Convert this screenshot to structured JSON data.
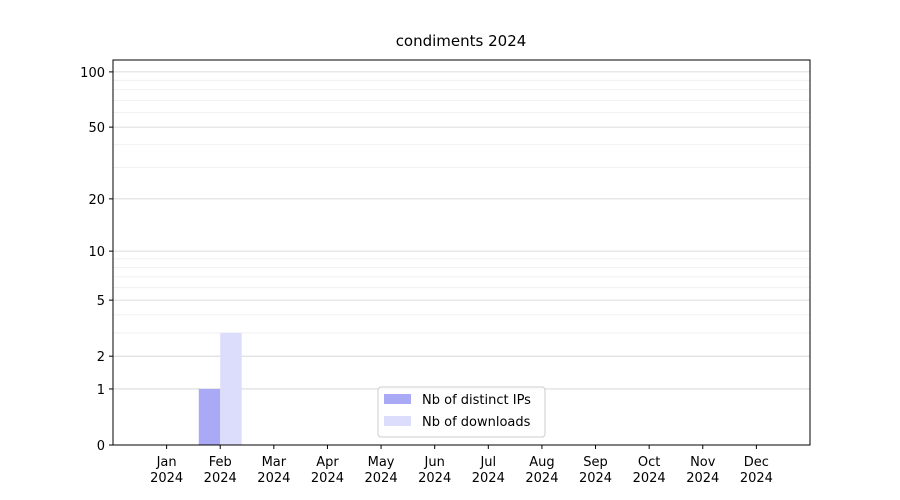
{
  "chart_data": {
    "type": "bar",
    "title": "condiments 2024",
    "categories": [
      "Jan\n2024",
      "Feb\n2024",
      "Mar\n2024",
      "Apr\n2024",
      "May\n2024",
      "Jun\n2024",
      "Jul\n2024",
      "Aug\n2024",
      "Sep\n2024",
      "Oct\n2024",
      "Nov\n2024",
      "Dec\n2024"
    ],
    "series": [
      {
        "name": "Nb of distinct IPs",
        "color": "#a9a9f5",
        "values": [
          0,
          1,
          0,
          0,
          0,
          0,
          0,
          0,
          0,
          0,
          0,
          0
        ]
      },
      {
        "name": "Nb of downloads",
        "color": "#dcdcfc",
        "values": [
          0,
          3,
          0,
          0,
          0,
          0,
          0,
          0,
          0,
          0,
          0,
          0
        ]
      }
    ],
    "yscale": "log1p",
    "ylim": [
      0,
      116
    ],
    "yticks": [
      0,
      1,
      2,
      5,
      10,
      20,
      50,
      100
    ],
    "minor_yticks": [
      3,
      4,
      6,
      7,
      8,
      9,
      30,
      40,
      60,
      70,
      80,
      90
    ],
    "grid": true,
    "legend": "lower center"
  }
}
